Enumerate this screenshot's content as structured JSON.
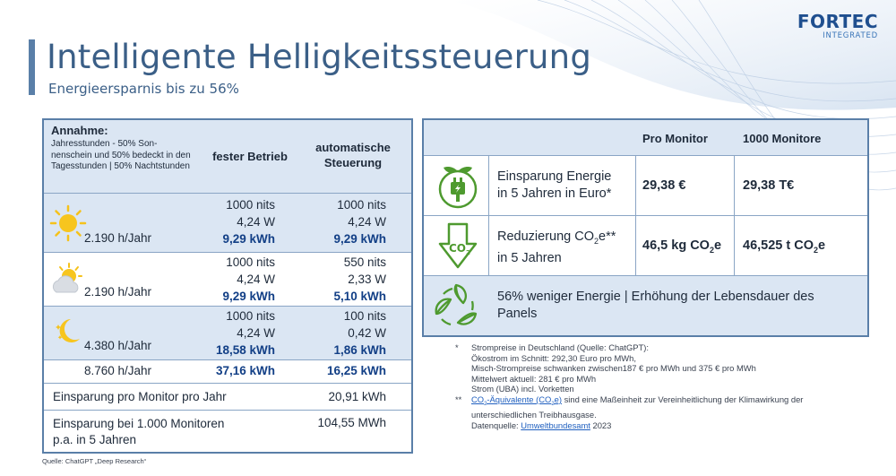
{
  "header": {
    "title": "Intelligente Helligkeitssteuerung",
    "subtitle": "Energieersparnis bis zu 56%"
  },
  "logo": {
    "main": "FORTEC",
    "sub": "INTEGRATED"
  },
  "left_table": {
    "assumption_title": "Annahme:",
    "assumption_text": "Jahresstunden - 50% Son-nenschein und 50% bedeckt in den Tagesstunden | 50% Nachtstunden",
    "col_fixed": "fester Betrieb",
    "col_auto": "automatische Steuerung",
    "rows": [
      {
        "icon": "sun-icon",
        "hours": "2.190 h/Jahr",
        "fixed": [
          "1000 nits",
          "4,24 W",
          "9,29 kWh"
        ],
        "auto": [
          "1000 nits",
          "4,24 W",
          "9,29 kWh"
        ]
      },
      {
        "icon": "partly-cloudy-icon",
        "hours": "2.190 h/Jahr",
        "fixed": [
          "1000 nits",
          "4,24 W",
          "9,29 kWh"
        ],
        "auto": [
          "550 nits",
          "2,33 W",
          "5,10 kWh"
        ]
      },
      {
        "icon": "moon-icon",
        "hours": "4.380 h/Jahr",
        "fixed": [
          "1000 nits",
          "4,24 W",
          "18,58 kWh"
        ],
        "auto": [
          "100 nits",
          "0,42 W",
          "1,86 kWh"
        ]
      }
    ],
    "total": {
      "hours": "8.760 h/Jahr",
      "fixed": "37,16 kWh",
      "auto": "16,25 kWh"
    },
    "savings_monitor": {
      "label": "Einsparung pro Monitor pro Jahr",
      "value": "20,91 kWh"
    },
    "savings_1000": {
      "label_line1": "Einsparung bei 1.000 Monitoren",
      "label_line2": "p.a. in 5 Jahren",
      "value": "104,55 MWh"
    }
  },
  "right_table": {
    "head_pro_monitor": "Pro Monitor",
    "head_1000": "1000 Monitore",
    "energy": {
      "icon": "eco-plug-icon",
      "line1": "Einsparung Energie",
      "line2": "in 5 Jahren in Euro*",
      "pro": "29,38 €",
      "k": "29,38 T€"
    },
    "co2": {
      "icon": "co2-arrow-icon",
      "line1_a": "Reduzierung CO",
      "line1_sub": "2",
      "line1_b": "e**",
      "line2": "in 5 Jahren",
      "pro_a": "46,5 kg CO",
      "pro_sub": "2",
      "pro_b": "e",
      "k_a": "46,525 t CO",
      "k_sub": "2",
      "k_b": "e",
      "icon_text": "CO",
      "icon_sub": "2"
    },
    "life": {
      "icon": "recycle-leaves-icon",
      "text": "56% weniger Energie | Erhöhung der Lebensdauer des Panels"
    }
  },
  "notes": {
    "mark1": "*",
    "lines1": [
      "Strompreise in Deutschland (Quelle: ChatGPT):",
      "Ökostrom im Schnitt: 292,30 Euro pro MWh,",
      "Misch-Strompreise schwanken zwischen187 € pro MWh und 375 € pro MWh",
      "Mittelwert aktuell: 281 € pro MWh",
      "Strom (UBA) incl. Vorketten"
    ],
    "mark2": "**",
    "link1_a": "CO",
    "link1_sub": "2",
    "link1_b": "-Äquivalente (CO",
    "link1_sub2": "2",
    "link1_c": "e)",
    "line2_rest": " sind eine Maßeinheit zur Vereinheitlichung der Klimawirkung der",
    "line2b": "unterschiedlichen Treibhausgase.",
    "line2c_pre": "Datenquelle: ",
    "line2c_link": "Umweltbundesamt",
    "line2c_post": " 2023"
  },
  "source": "Quelle: ChatGPT „Deep Research“",
  "colors": {
    "accent": "#5a7fa8",
    "title": "#3b5f87",
    "kwh": "#123f86",
    "icon_green": "#4e9a2f"
  }
}
